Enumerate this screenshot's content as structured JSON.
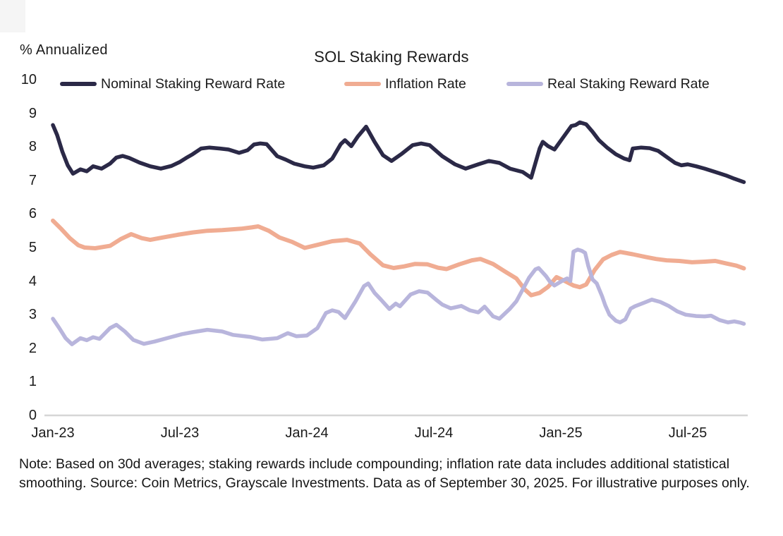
{
  "footnote": {
    "text": "Note: Based on 30d averages; staking rewards include compounding; inflation rate data includes additional statistical smoothing. Source: Coin Metrics, Grayscale Investments. Data as of September 30, 2025. For illustrative purposes only."
  },
  "chart_data": {
    "type": "line",
    "title": "SOL Staking Rewards",
    "ylabel": "% Annualized",
    "xlabel": "",
    "ylim": [
      0,
      10
    ],
    "xlim_months": [
      0,
      32.7
    ],
    "x_unit": "months since Jan-2023 (0 = Jan-23)",
    "grid": false,
    "legend_position": "top",
    "axis_line_color": "#d6d6d6",
    "text_color": "#1b1b1b",
    "y_ticks": [
      10,
      9,
      8,
      7,
      6,
      5,
      4,
      3,
      2,
      1,
      0
    ],
    "x_ticks": [
      {
        "label": "Jan-23",
        "month": 0
      },
      {
        "label": "Jul-23",
        "month": 6
      },
      {
        "label": "Jan-24",
        "month": 12
      },
      {
        "label": "Jul-24",
        "month": 18
      },
      {
        "label": "Jan-25",
        "month": 24
      },
      {
        "label": "Jul-25",
        "month": 30
      }
    ],
    "series": [
      {
        "name": "Nominal Staking Reward Rate",
        "color": "#2b2947",
        "stroke_width": 5.5,
        "points": [
          [
            0,
            8.65
          ],
          [
            0.2,
            8.35
          ],
          [
            0.45,
            7.85
          ],
          [
            0.7,
            7.45
          ],
          [
            0.95,
            7.2
          ],
          [
            1.3,
            7.33
          ],
          [
            1.6,
            7.27
          ],
          [
            1.9,
            7.42
          ],
          [
            2.3,
            7.35
          ],
          [
            2.7,
            7.5
          ],
          [
            3,
            7.68
          ],
          [
            3.3,
            7.73
          ],
          [
            3.6,
            7.67
          ],
          [
            4.1,
            7.53
          ],
          [
            4.6,
            7.42
          ],
          [
            5.1,
            7.35
          ],
          [
            5.6,
            7.43
          ],
          [
            6,
            7.55
          ],
          [
            6.3,
            7.67
          ],
          [
            6.6,
            7.78
          ],
          [
            7,
            7.95
          ],
          [
            7.4,
            7.98
          ],
          [
            7.9,
            7.95
          ],
          [
            8.3,
            7.92
          ],
          [
            8.8,
            7.82
          ],
          [
            9.2,
            7.9
          ],
          [
            9.5,
            8.07
          ],
          [
            9.8,
            8.1
          ],
          [
            10.1,
            8.08
          ],
          [
            10.6,
            7.72
          ],
          [
            11,
            7.62
          ],
          [
            11.4,
            7.5
          ],
          [
            11.9,
            7.42
          ],
          [
            12.3,
            7.38
          ],
          [
            12.8,
            7.45
          ],
          [
            13.2,
            7.65
          ],
          [
            13.6,
            8.08
          ],
          [
            13.8,
            8.2
          ],
          [
            14.1,
            8.02
          ],
          [
            14.4,
            8.3
          ],
          [
            14.8,
            8.6
          ],
          [
            15.2,
            8.15
          ],
          [
            15.6,
            7.75
          ],
          [
            16,
            7.58
          ],
          [
            16.5,
            7.8
          ],
          [
            17,
            8.05
          ],
          [
            17.4,
            8.1
          ],
          [
            17.8,
            8.05
          ],
          [
            18.4,
            7.72
          ],
          [
            19,
            7.48
          ],
          [
            19.5,
            7.35
          ],
          [
            20.1,
            7.48
          ],
          [
            20.6,
            7.58
          ],
          [
            21.1,
            7.52
          ],
          [
            21.6,
            7.35
          ],
          [
            22.2,
            7.25
          ],
          [
            22.6,
            7.08
          ],
          [
            23,
            7.95
          ],
          [
            23.15,
            8.15
          ],
          [
            23.4,
            8.02
          ],
          [
            23.7,
            7.92
          ],
          [
            24.1,
            8.27
          ],
          [
            24.5,
            8.62
          ],
          [
            24.7,
            8.65
          ],
          [
            24.9,
            8.73
          ],
          [
            25.2,
            8.67
          ],
          [
            25.5,
            8.45
          ],
          [
            25.8,
            8.2
          ],
          [
            26.2,
            7.97
          ],
          [
            26.6,
            7.78
          ],
          [
            27,
            7.65
          ],
          [
            27.25,
            7.6
          ],
          [
            27.4,
            7.95
          ],
          [
            27.8,
            7.98
          ],
          [
            28.2,
            7.96
          ],
          [
            28.6,
            7.88
          ],
          [
            29,
            7.7
          ],
          [
            29.4,
            7.52
          ],
          [
            29.7,
            7.45
          ],
          [
            30,
            7.48
          ],
          [
            30.4,
            7.42
          ],
          [
            30.8,
            7.35
          ],
          [
            31.3,
            7.25
          ],
          [
            31.8,
            7.15
          ],
          [
            32.2,
            7.05
          ],
          [
            32.65,
            6.95
          ]
        ]
      },
      {
        "name": "Inflation Rate",
        "color": "#f0ac92",
        "stroke_width": 6,
        "points": [
          [
            0,
            5.8
          ],
          [
            0.4,
            5.55
          ],
          [
            0.8,
            5.28
          ],
          [
            1.2,
            5.07
          ],
          [
            1.5,
            5.0
          ],
          [
            2,
            4.98
          ],
          [
            2.7,
            5.05
          ],
          [
            3.2,
            5.25
          ],
          [
            3.7,
            5.4
          ],
          [
            4.2,
            5.28
          ],
          [
            4.6,
            5.23
          ],
          [
            5.2,
            5.3
          ],
          [
            5.9,
            5.38
          ],
          [
            6.6,
            5.45
          ],
          [
            7.3,
            5.5
          ],
          [
            8,
            5.52
          ],
          [
            8.9,
            5.56
          ],
          [
            9.4,
            5.6
          ],
          [
            9.7,
            5.63
          ],
          [
            10.2,
            5.5
          ],
          [
            10.7,
            5.3
          ],
          [
            11.3,
            5.17
          ],
          [
            11.9,
            4.99
          ],
          [
            12.5,
            5.08
          ],
          [
            13.2,
            5.19
          ],
          [
            13.9,
            5.23
          ],
          [
            14.5,
            5.12
          ],
          [
            15,
            4.8
          ],
          [
            15.6,
            4.47
          ],
          [
            16.1,
            4.39
          ],
          [
            16.6,
            4.44
          ],
          [
            17.1,
            4.51
          ],
          [
            17.7,
            4.5
          ],
          [
            18.2,
            4.4
          ],
          [
            18.6,
            4.36
          ],
          [
            19.2,
            4.5
          ],
          [
            19.8,
            4.62
          ],
          [
            20.2,
            4.66
          ],
          [
            20.8,
            4.51
          ],
          [
            21.4,
            4.27
          ],
          [
            21.9,
            4.08
          ],
          [
            22.3,
            3.75
          ],
          [
            22.6,
            3.58
          ],
          [
            23,
            3.65
          ],
          [
            23.4,
            3.83
          ],
          [
            23.8,
            4.12
          ],
          [
            24.2,
            4.0
          ],
          [
            24.6,
            3.87
          ],
          [
            24.9,
            3.82
          ],
          [
            25.2,
            3.9
          ],
          [
            25.6,
            4.33
          ],
          [
            26,
            4.65
          ],
          [
            26.4,
            4.78
          ],
          [
            26.8,
            4.87
          ],
          [
            27.4,
            4.8
          ],
          [
            28,
            4.72
          ],
          [
            28.5,
            4.66
          ],
          [
            29,
            4.62
          ],
          [
            29.6,
            4.6
          ],
          [
            30.2,
            4.56
          ],
          [
            30.8,
            4.58
          ],
          [
            31.3,
            4.6
          ],
          [
            31.8,
            4.53
          ],
          [
            32.3,
            4.46
          ],
          [
            32.65,
            4.38
          ]
        ]
      },
      {
        "name": "Real Staking Reward Rate",
        "color": "#b8b5dc",
        "stroke_width": 5.5,
        "points": [
          [
            0,
            2.88
          ],
          [
            0.3,
            2.6
          ],
          [
            0.6,
            2.3
          ],
          [
            0.9,
            2.12
          ],
          [
            1.3,
            2.3
          ],
          [
            1.6,
            2.24
          ],
          [
            1.9,
            2.33
          ],
          [
            2.2,
            2.28
          ],
          [
            2.7,
            2.6
          ],
          [
            3,
            2.7
          ],
          [
            3.4,
            2.5
          ],
          [
            3.8,
            2.25
          ],
          [
            4.3,
            2.13
          ],
          [
            4.8,
            2.2
          ],
          [
            5.5,
            2.32
          ],
          [
            6.1,
            2.42
          ],
          [
            6.6,
            2.48
          ],
          [
            7.3,
            2.55
          ],
          [
            8,
            2.5
          ],
          [
            8.5,
            2.4
          ],
          [
            9.3,
            2.34
          ],
          [
            9.9,
            2.26
          ],
          [
            10.6,
            2.3
          ],
          [
            11.1,
            2.45
          ],
          [
            11.5,
            2.36
          ],
          [
            12,
            2.38
          ],
          [
            12.5,
            2.6
          ],
          [
            12.9,
            3.05
          ],
          [
            13.2,
            3.13
          ],
          [
            13.5,
            3.08
          ],
          [
            13.8,
            2.9
          ],
          [
            14.3,
            3.4
          ],
          [
            14.7,
            3.85
          ],
          [
            14.9,
            3.93
          ],
          [
            15.2,
            3.65
          ],
          [
            15.5,
            3.45
          ],
          [
            15.9,
            3.17
          ],
          [
            16.2,
            3.33
          ],
          [
            16.4,
            3.25
          ],
          [
            16.9,
            3.6
          ],
          [
            17.3,
            3.7
          ],
          [
            17.7,
            3.66
          ],
          [
            18.1,
            3.45
          ],
          [
            18.4,
            3.3
          ],
          [
            18.8,
            3.19
          ],
          [
            19.3,
            3.26
          ],
          [
            19.7,
            3.13
          ],
          [
            20.1,
            3.07
          ],
          [
            20.4,
            3.24
          ],
          [
            20.8,
            2.95
          ],
          [
            21.1,
            2.88
          ],
          [
            21.6,
            3.18
          ],
          [
            21.9,
            3.4
          ],
          [
            22.2,
            3.75
          ],
          [
            22.5,
            4.1
          ],
          [
            22.8,
            4.35
          ],
          [
            22.95,
            4.39
          ],
          [
            23.3,
            4.15
          ],
          [
            23.5,
            3.97
          ],
          [
            23.7,
            3.87
          ],
          [
            24.1,
            4.02
          ],
          [
            24.3,
            4.08
          ],
          [
            24.45,
            4.0
          ],
          [
            24.6,
            4.88
          ],
          [
            24.8,
            4.94
          ],
          [
            25,
            4.9
          ],
          [
            25.15,
            4.84
          ],
          [
            25.3,
            4.45
          ],
          [
            25.5,
            4.05
          ],
          [
            25.7,
            3.93
          ],
          [
            25.95,
            3.55
          ],
          [
            26.1,
            3.28
          ],
          [
            26.3,
            3.0
          ],
          [
            26.6,
            2.82
          ],
          [
            26.8,
            2.77
          ],
          [
            27.05,
            2.86
          ],
          [
            27.3,
            3.18
          ],
          [
            27.5,
            3.25
          ],
          [
            27.95,
            3.36
          ],
          [
            28.3,
            3.45
          ],
          [
            28.7,
            3.38
          ],
          [
            29.1,
            3.26
          ],
          [
            29.5,
            3.1
          ],
          [
            29.9,
            3.0
          ],
          [
            30.4,
            2.96
          ],
          [
            30.8,
            2.95
          ],
          [
            31.1,
            2.97
          ],
          [
            31.5,
            2.84
          ],
          [
            31.9,
            2.77
          ],
          [
            32.2,
            2.8
          ],
          [
            32.5,
            2.76
          ],
          [
            32.65,
            2.73
          ]
        ]
      }
    ]
  }
}
